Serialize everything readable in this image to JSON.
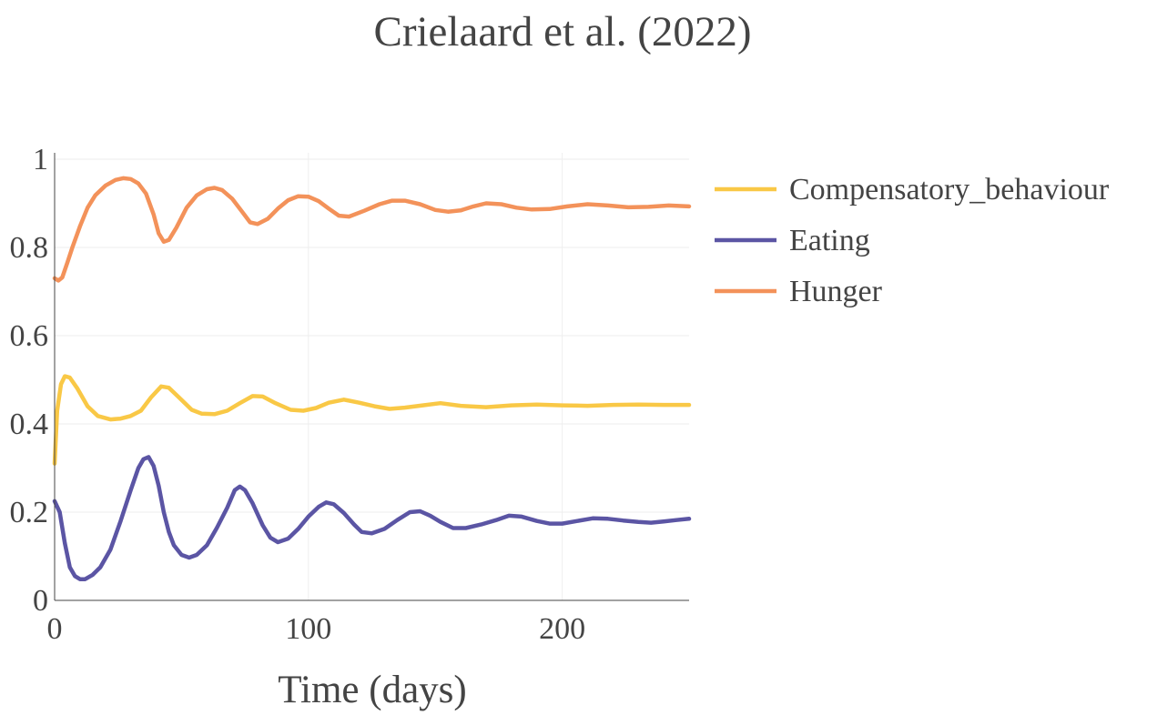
{
  "chart_data": {
    "type": "line",
    "title": "Crielaard et al. (2022)",
    "xlabel": "Time (days)",
    "ylabel": "",
    "xlim": [
      0,
      250
    ],
    "ylim": [
      0,
      1
    ],
    "x_ticks": [
      0,
      100,
      200
    ],
    "y_ticks": [
      0,
      0.2,
      0.4,
      0.6,
      0.8,
      1
    ],
    "y_tick_labels": [
      "0",
      "0.2",
      "0.4",
      "0.6",
      "0.8",
      "1"
    ],
    "grid": true,
    "legend_position": "right",
    "series": [
      {
        "name": "Compensatory_behaviour",
        "color": "#f9c846",
        "points": [
          [
            0,
            0.31
          ],
          [
            1,
            0.43
          ],
          [
            2.5,
            0.49
          ],
          [
            4,
            0.508
          ],
          [
            6,
            0.505
          ],
          [
            9,
            0.48
          ],
          [
            13,
            0.44
          ],
          [
            17,
            0.418
          ],
          [
            22,
            0.41
          ],
          [
            26,
            0.412
          ],
          [
            30,
            0.418
          ],
          [
            34,
            0.43
          ],
          [
            38,
            0.46
          ],
          [
            42,
            0.485
          ],
          [
            45,
            0.482
          ],
          [
            49,
            0.46
          ],
          [
            54,
            0.432
          ],
          [
            58,
            0.423
          ],
          [
            63,
            0.422
          ],
          [
            68,
            0.43
          ],
          [
            73,
            0.447
          ],
          [
            78,
            0.463
          ],
          [
            82,
            0.462
          ],
          [
            87,
            0.447
          ],
          [
            93,
            0.432
          ],
          [
            98,
            0.43
          ],
          [
            103,
            0.436
          ],
          [
            108,
            0.448
          ],
          [
            114,
            0.455
          ],
          [
            120,
            0.448
          ],
          [
            126,
            0.44
          ],
          [
            132,
            0.434
          ],
          [
            138,
            0.437
          ],
          [
            145,
            0.442
          ],
          [
            152,
            0.447
          ],
          [
            160,
            0.441
          ],
          [
            170,
            0.438
          ],
          [
            180,
            0.442
          ],
          [
            190,
            0.444
          ],
          [
            200,
            0.442
          ],
          [
            210,
            0.441
          ],
          [
            220,
            0.443
          ],
          [
            230,
            0.444
          ],
          [
            240,
            0.443
          ],
          [
            250,
            0.443
          ]
        ]
      },
      {
        "name": "Eating",
        "color": "#5b55a4",
        "points": [
          [
            0,
            0.225
          ],
          [
            2,
            0.2
          ],
          [
            4,
            0.13
          ],
          [
            6,
            0.075
          ],
          [
            8,
            0.055
          ],
          [
            10,
            0.048
          ],
          [
            12,
            0.048
          ],
          [
            15,
            0.058
          ],
          [
            18,
            0.075
          ],
          [
            22,
            0.115
          ],
          [
            26,
            0.18
          ],
          [
            30,
            0.25
          ],
          [
            33,
            0.3
          ],
          [
            35,
            0.32
          ],
          [
            37,
            0.325
          ],
          [
            39,
            0.305
          ],
          [
            41,
            0.26
          ],
          [
            43,
            0.2
          ],
          [
            45,
            0.155
          ],
          [
            47,
            0.125
          ],
          [
            50,
            0.103
          ],
          [
            53,
            0.097
          ],
          [
            56,
            0.103
          ],
          [
            60,
            0.125
          ],
          [
            64,
            0.165
          ],
          [
            68,
            0.21
          ],
          [
            71,
            0.25
          ],
          [
            73,
            0.258
          ],
          [
            75,
            0.25
          ],
          [
            78,
            0.22
          ],
          [
            82,
            0.17
          ],
          [
            85,
            0.142
          ],
          [
            88,
            0.132
          ],
          [
            92,
            0.14
          ],
          [
            96,
            0.162
          ],
          [
            100,
            0.19
          ],
          [
            104,
            0.212
          ],
          [
            107,
            0.222
          ],
          [
            110,
            0.218
          ],
          [
            114,
            0.198
          ],
          [
            118,
            0.172
          ],
          [
            121,
            0.155
          ],
          [
            125,
            0.152
          ],
          [
            130,
            0.162
          ],
          [
            135,
            0.182
          ],
          [
            140,
            0.2
          ],
          [
            144,
            0.202
          ],
          [
            148,
            0.192
          ],
          [
            152,
            0.178
          ],
          [
            157,
            0.164
          ],
          [
            162,
            0.164
          ],
          [
            168,
            0.172
          ],
          [
            174,
            0.182
          ],
          [
            179,
            0.192
          ],
          [
            184,
            0.19
          ],
          [
            190,
            0.18
          ],
          [
            195,
            0.174
          ],
          [
            200,
            0.174
          ],
          [
            206,
            0.18
          ],
          [
            212,
            0.186
          ],
          [
            218,
            0.185
          ],
          [
            224,
            0.181
          ],
          [
            230,
            0.178
          ],
          [
            235,
            0.176
          ],
          [
            240,
            0.179
          ],
          [
            245,
            0.182
          ],
          [
            250,
            0.185
          ]
        ]
      },
      {
        "name": "Hunger",
        "color": "#f3925a",
        "points": [
          [
            0,
            0.73
          ],
          [
            1.5,
            0.725
          ],
          [
            3,
            0.732
          ],
          [
            5,
            0.765
          ],
          [
            7,
            0.8
          ],
          [
            10,
            0.848
          ],
          [
            13,
            0.89
          ],
          [
            16,
            0.918
          ],
          [
            20,
            0.94
          ],
          [
            24,
            0.953
          ],
          [
            27,
            0.957
          ],
          [
            30,
            0.955
          ],
          [
            33,
            0.945
          ],
          [
            36,
            0.922
          ],
          [
            39,
            0.875
          ],
          [
            41,
            0.832
          ],
          [
            43,
            0.813
          ],
          [
            45,
            0.817
          ],
          [
            48,
            0.845
          ],
          [
            52,
            0.89
          ],
          [
            56,
            0.918
          ],
          [
            60,
            0.932
          ],
          [
            63,
            0.935
          ],
          [
            66,
            0.93
          ],
          [
            70,
            0.91
          ],
          [
            74,
            0.88
          ],
          [
            77,
            0.857
          ],
          [
            80,
            0.853
          ],
          [
            84,
            0.865
          ],
          [
            88,
            0.888
          ],
          [
            92,
            0.907
          ],
          [
            96,
            0.916
          ],
          [
            100,
            0.915
          ],
          [
            104,
            0.905
          ],
          [
            108,
            0.888
          ],
          [
            112,
            0.872
          ],
          [
            116,
            0.87
          ],
          [
            122,
            0.883
          ],
          [
            128,
            0.898
          ],
          [
            133,
            0.906
          ],
          [
            138,
            0.906
          ],
          [
            144,
            0.898
          ],
          [
            150,
            0.885
          ],
          [
            155,
            0.881
          ],
          [
            160,
            0.884
          ],
          [
            165,
            0.893
          ],
          [
            170,
            0.9
          ],
          [
            176,
            0.898
          ],
          [
            182,
            0.89
          ],
          [
            188,
            0.886
          ],
          [
            195,
            0.887
          ],
          [
            202,
            0.893
          ],
          [
            210,
            0.898
          ],
          [
            218,
            0.895
          ],
          [
            226,
            0.891
          ],
          [
            234,
            0.892
          ],
          [
            242,
            0.895
          ],
          [
            250,
            0.893
          ]
        ]
      }
    ]
  }
}
